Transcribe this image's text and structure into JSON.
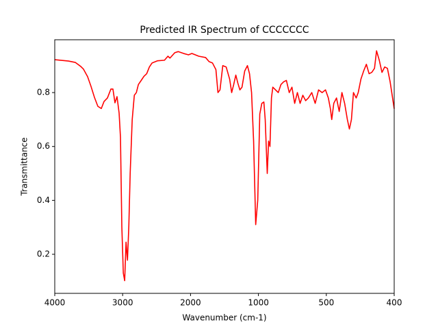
{
  "chart_data": {
    "type": "line",
    "title": "Predicted IR Spectrum of CCCCCCC",
    "xlabel": "Wavenumber (cm-1)",
    "ylabel": "Transmittance",
    "x": [
      4000,
      3798,
      3698,
      3617,
      3577,
      3516,
      3466,
      3415,
      3365,
      3314,
      3274,
      3224,
      3173,
      3143,
      3113,
      3083,
      3052,
      3032,
      3012,
      2990,
      2970,
      2950,
      2929,
      2909,
      2889,
      2859,
      2828,
      2798,
      2768,
      2727,
      2687,
      2646,
      2606,
      2566,
      2485,
      2384,
      2333,
      2303,
      2232,
      2182,
      2101,
      2030,
      1980,
      1879,
      1778,
      1727,
      1677,
      1626,
      1596,
      1566,
      1525,
      1475,
      1424,
      1394,
      1364,
      1333,
      1303,
      1273,
      1242,
      1202,
      1162,
      1131,
      1101,
      1071,
      1040,
      1010,
      990,
      975,
      960,
      950,
      935,
      925,
      915,
      904,
      894,
      874,
      854,
      834,
      814,
      794,
      773,
      753,
      733,
      713,
      693,
      673,
      652,
      632,
      607,
      582,
      557,
      531,
      506,
      497,
      494,
      492,
      489,
      485,
      481,
      477,
      473,
      469,
      466,
      463,
      460,
      456,
      453,
      449,
      445,
      441,
      437,
      433,
      429,
      426,
      422,
      418,
      414,
      410,
      406,
      400
    ],
    "series": [
      {
        "name": "Transmittance",
        "color": "#ff0000",
        "values": [
          0.922,
          0.917,
          0.912,
          0.897,
          0.887,
          0.859,
          0.823,
          0.782,
          0.749,
          0.741,
          0.767,
          0.78,
          0.813,
          0.813,
          0.762,
          0.785,
          0.724,
          0.634,
          0.303,
          0.13,
          0.102,
          0.245,
          0.178,
          0.303,
          0.5,
          0.7,
          0.79,
          0.8,
          0.83,
          0.845,
          0.86,
          0.87,
          0.895,
          0.91,
          0.918,
          0.92,
          0.935,
          0.928,
          0.948,
          0.952,
          0.945,
          0.94,
          0.945,
          0.935,
          0.93,
          0.915,
          0.91,
          0.885,
          0.8,
          0.81,
          0.9,
          0.895,
          0.85,
          0.8,
          0.83,
          0.865,
          0.835,
          0.81,
          0.82,
          0.88,
          0.9,
          0.87,
          0.8,
          0.62,
          0.31,
          0.4,
          0.72,
          0.76,
          0.765,
          0.7,
          0.5,
          0.62,
          0.6,
          0.78,
          0.82,
          0.81,
          0.8,
          0.83,
          0.84,
          0.845,
          0.8,
          0.82,
          0.76,
          0.8,
          0.76,
          0.79,
          0.77,
          0.78,
          0.8,
          0.76,
          0.81,
          0.8,
          0.81,
          0.78,
          0.74,
          0.7,
          0.76,
          0.78,
          0.73,
          0.8,
          0.76,
          0.7,
          0.665,
          0.7,
          0.8,
          0.78,
          0.8,
          0.85,
          0.88,
          0.905,
          0.87,
          0.875,
          0.89,
          0.955,
          0.92,
          0.875,
          0.895,
          0.89,
          0.84,
          0.74
        ]
      }
    ],
    "xlim": [
      4000,
      400
    ],
    "xticks": [
      4000,
      3000,
      2000,
      1000,
      500,
      400
    ],
    "ylim": [
      0.055,
      0.996
    ],
    "yticks": [
      0.2,
      0.4,
      0.6,
      0.8
    ]
  }
}
